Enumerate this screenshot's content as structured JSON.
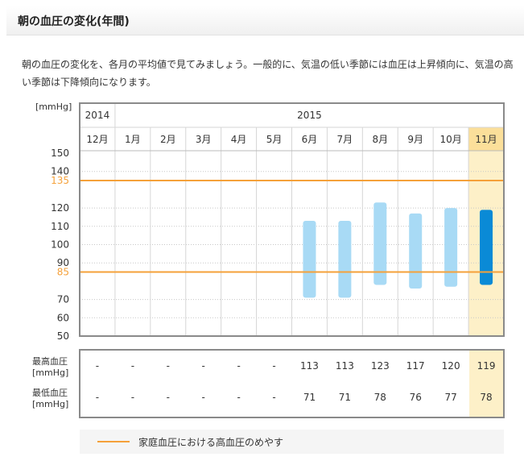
{
  "page": {
    "title": "朝の血圧の変化(年間)",
    "description": "朝の血圧の変化を、各月の平均値で見てみましょう。一般的に、気温の低い季節には血圧は上昇傾向に、気温の高い季節は下降傾向になります。",
    "unit_label": "[mmHg]",
    "legend_label": "家庭血圧における高血圧のめやす"
  },
  "colors": {
    "bar": "#a8daf5",
    "bar_current": "#0a8ad6",
    "highlight": "#fdf0c8",
    "highlight_header": "#fbdf9a",
    "threshold": "#f5a13a"
  },
  "chart_data": {
    "type": "bar",
    "subtype": "floating-range",
    "years": [
      {
        "label": "2014",
        "span": 1
      },
      {
        "label": "2015",
        "span": 11
      }
    ],
    "categories": [
      "12月",
      "1月",
      "2月",
      "3月",
      "4月",
      "5月",
      "6月",
      "7月",
      "8月",
      "9月",
      "10月",
      "11月"
    ],
    "series": [
      {
        "name": "最高血圧",
        "values": [
          null,
          null,
          null,
          null,
          null,
          null,
          113,
          113,
          123,
          117,
          120,
          119
        ]
      },
      {
        "name": "最低血圧",
        "values": [
          null,
          null,
          null,
          null,
          null,
          null,
          71,
          71,
          78,
          76,
          77,
          78
        ]
      }
    ],
    "ylim": [
      50,
      150
    ],
    "yticks": [
      150,
      140,
      120,
      110,
      100,
      90,
      70,
      60,
      50
    ],
    "thresholds": [
      135,
      85
    ],
    "highlight_index": 11,
    "grid": true,
    "table_rows": [
      {
        "label_line1": "最高血圧",
        "label_line2": "[mmHg]"
      },
      {
        "label_line1": "最低血圧",
        "label_line2": "[mmHg]"
      }
    ],
    "empty_value": "-"
  }
}
